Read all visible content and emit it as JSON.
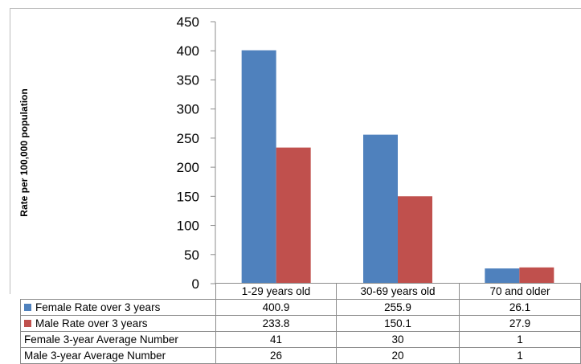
{
  "chart_data": {
    "type": "bar",
    "categories": [
      "1-29 years old",
      "30-69 years old",
      "70 and older"
    ],
    "series": [
      {
        "name": "Female Rate over 3 years",
        "values": [
          400.9,
          255.9,
          26.1
        ],
        "color": "#4f81bd"
      },
      {
        "name": "Male Rate over 3 years",
        "values": [
          233.8,
          150.1,
          27.9
        ],
        "color": "#c0504d"
      }
    ],
    "ylabel": "Rate per 100,000 population",
    "ylim": [
      0,
      450
    ],
    "yticks": [
      "0",
      "50",
      "100",
      "150",
      "200",
      "250",
      "300",
      "350",
      "400",
      "450"
    ],
    "grid": false,
    "legend": "data-table",
    "table": {
      "rows": [
        {
          "label": "Female Rate over 3 years",
          "values": [
            "400.9",
            "255.9",
            "26.1"
          ],
          "key_color": "#4f81bd"
        },
        {
          "label": "Male Rate over 3 years",
          "values": [
            "233.8",
            "150.1",
            "27.9"
          ],
          "key_color": "#c0504d"
        },
        {
          "label": "Female 3-year Average Number",
          "values": [
            "41",
            "30",
            "1"
          ]
        },
        {
          "label": "Male 3-year Average Number",
          "values": [
            "26",
            "20",
            "1"
          ]
        }
      ]
    }
  }
}
